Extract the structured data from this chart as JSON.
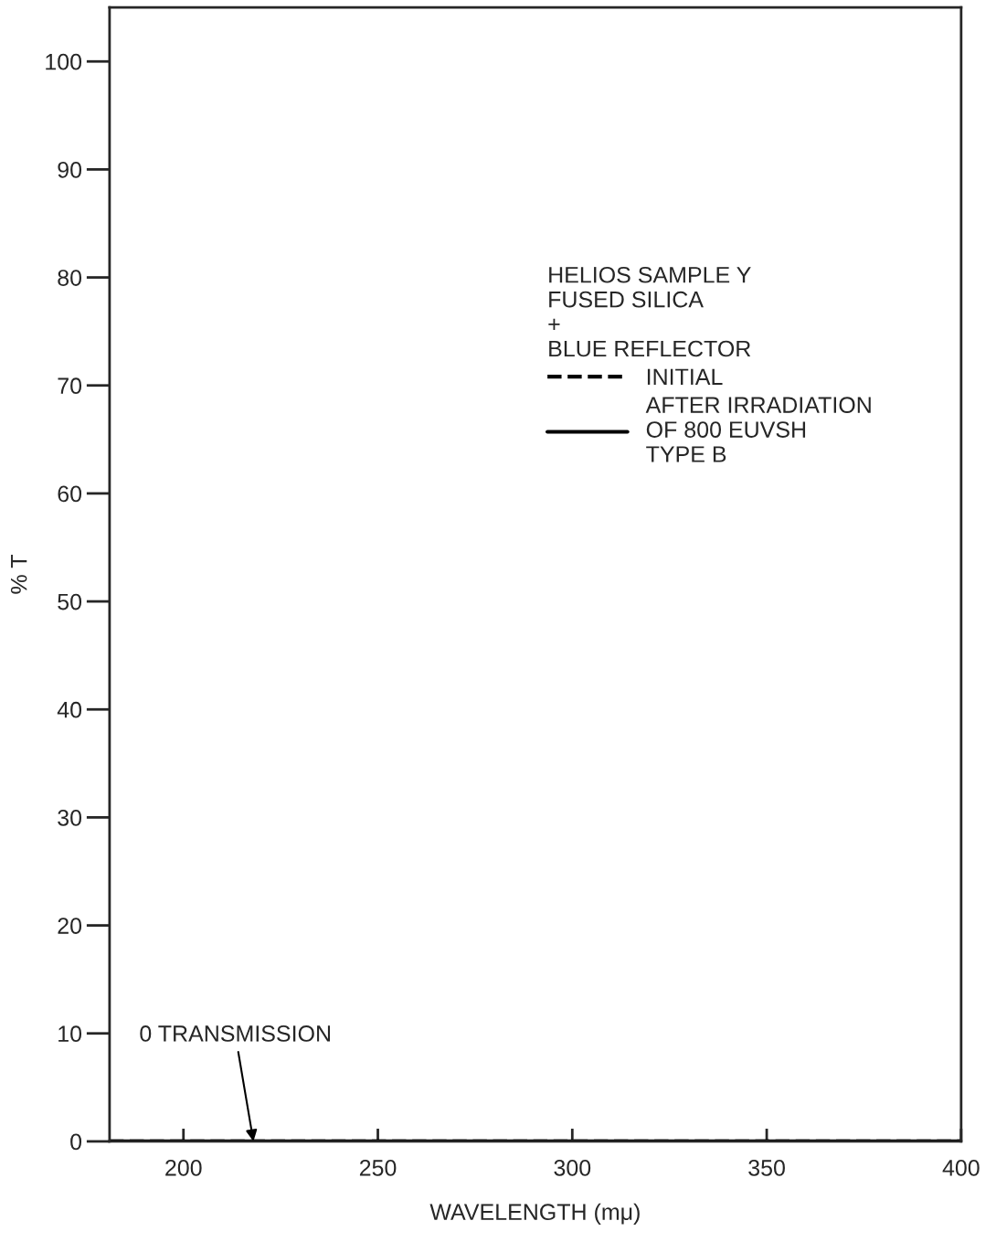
{
  "chart_data": {
    "type": "line",
    "xlabel": "WAVELENGTH (mμ)",
    "ylabel": "% T",
    "legend_title": "HELIOS SAMPLE Y\nFUSED SILICA\n+\nBLUE REFLECTOR",
    "x": [
      181,
      400
    ],
    "series": [
      {
        "name": "INITIAL",
        "color": "#000000",
        "line_style": "dashed",
        "values": [
          0,
          0
        ]
      },
      {
        "name": "AFTER IRRADIATION\nOF 800 EUVSH\nTYPE B",
        "color": "#000000",
        "line_style": "solid",
        "values": [
          0,
          0
        ]
      }
    ],
    "annotations": [
      {
        "text": "0 TRANSMISSION",
        "x": 218,
        "y": 0
      }
    ],
    "xlim": [
      181,
      400
    ],
    "xticks": [
      200,
      250,
      300,
      350,
      400
    ],
    "ylim": [
      0,
      105
    ],
    "yticks": [
      0,
      10,
      20,
      30,
      40,
      50,
      60,
      70,
      80,
      90,
      100
    ],
    "grid": false,
    "legend": "top right",
    "marker": "none"
  }
}
